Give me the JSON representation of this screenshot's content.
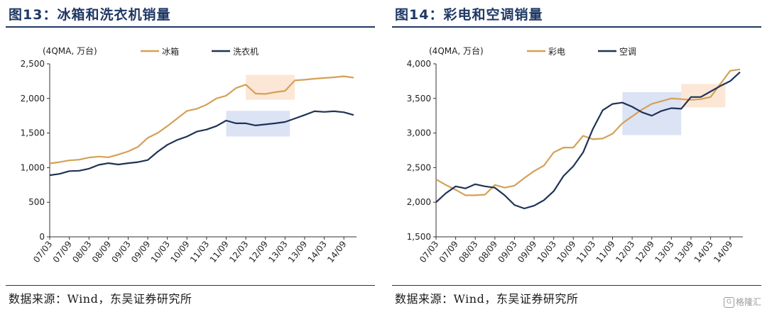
{
  "colors": {
    "gold": "#D4A155",
    "navy": "#1F3356",
    "peach": "#FBE3CF",
    "lightblue": "#D6DEF2",
    "title": "#1f3864"
  },
  "chart_data": [
    {
      "type": "line",
      "title": "图13：冰箱和洗衣机销量",
      "unit": "(4QMA, 万台)",
      "source": "数据来源：Wind，东吴证券研究所",
      "ylim": [
        0,
        2500
      ],
      "yticks": [
        0,
        500,
        1000,
        1500,
        2000,
        2500
      ],
      "ytick_labels": [
        "0",
        "500",
        "1,000",
        "1,500",
        "2,000",
        "2,500"
      ],
      "xtick_labels": [
        "07/03",
        "07/09",
        "08/03",
        "08/09",
        "09/03",
        "09/09",
        "10/03",
        "10/09",
        "11/03",
        "11/09",
        "12/03",
        "12/09",
        "13/03",
        "13/09",
        "14/03",
        "14/09"
      ],
      "x_start": "07/03",
      "points_per_tick": 2,
      "legend_position": "top",
      "series": [
        {
          "name": "冰箱",
          "color": "#D4A155",
          "values": [
            1060,
            1080,
            1105,
            1115,
            1145,
            1160,
            1150,
            1190,
            1235,
            1300,
            1430,
            1500,
            1600,
            1710,
            1820,
            1850,
            1910,
            2000,
            2040,
            2150,
            2200,
            2070,
            2065,
            2090,
            2110,
            2260,
            2270,
            2285,
            2295,
            2305,
            2320,
            2300
          ]
        },
        {
          "name": "洗衣机",
          "color": "#1F3356",
          "values": [
            890,
            910,
            950,
            955,
            985,
            1040,
            1065,
            1045,
            1065,
            1080,
            1110,
            1230,
            1330,
            1400,
            1450,
            1520,
            1550,
            1600,
            1680,
            1640,
            1640,
            1610,
            1625,
            1640,
            1660,
            1710,
            1760,
            1815,
            1805,
            1815,
            1800,
            1760
          ]
        }
      ],
      "highlights": [
        {
          "color": "#FBE3CF",
          "x0": 20.0,
          "x1": 25.0,
          "y0": 1980,
          "y1": 2340
        },
        {
          "color": "#D6DEF2",
          "x0": 18.0,
          "x1": 24.5,
          "y0": 1450,
          "y1": 1820
        }
      ]
    },
    {
      "type": "line",
      "title": "图14：彩电和空调销量",
      "unit": "(4QMA, 万台)",
      "source": "数据来源：Wind，东吴证券研究所",
      "ylim": [
        1500,
        4000
      ],
      "yticks": [
        1500,
        2000,
        2500,
        3000,
        3500,
        4000
      ],
      "ytick_labels": [
        "1,500",
        "2,000",
        "2,500",
        "3,000",
        "3,500",
        "4,000"
      ],
      "xtick_labels": [
        "07/03",
        "07/09",
        "08/03",
        "08/09",
        "09/03",
        "09/09",
        "10/03",
        "10/09",
        "11/03",
        "11/09",
        "12/03",
        "12/09",
        "13/03",
        "13/09",
        "14/03",
        "14/09"
      ],
      "x_start": "07/03",
      "points_per_tick": 2,
      "legend_position": "top",
      "series": [
        {
          "name": "彩电",
          "color": "#D4A155",
          "values": [
            2330,
            2250,
            2180,
            2100,
            2100,
            2110,
            2250,
            2210,
            2240,
            2350,
            2450,
            2530,
            2720,
            2790,
            2790,
            2960,
            2910,
            2920,
            2990,
            3140,
            3240,
            3340,
            3420,
            3460,
            3500,
            3490,
            3480,
            3490,
            3520,
            3710,
            3900,
            3920
          ]
        },
        {
          "name": "空调",
          "color": "#1F3356",
          "values": [
            2000,
            2130,
            2230,
            2200,
            2260,
            2230,
            2210,
            2100,
            1960,
            1910,
            1950,
            2030,
            2160,
            2380,
            2520,
            2720,
            3060,
            3330,
            3420,
            3440,
            3380,
            3300,
            3250,
            3320,
            3360,
            3350,
            3520,
            3520,
            3600,
            3680,
            3750,
            3880
          ]
        }
      ],
      "highlights": [
        {
          "color": "#D6DEF2",
          "x0": 19.0,
          "x1": 25.0,
          "y0": 2970,
          "y1": 3590
        },
        {
          "color": "#FBE3CF",
          "x0": 25.0,
          "x1": 29.5,
          "y0": 3370,
          "y1": 3710
        }
      ]
    }
  ],
  "watermark": {
    "icon": "G",
    "text": "格隆汇"
  }
}
